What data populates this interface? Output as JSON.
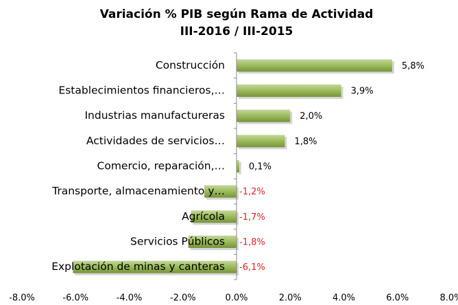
{
  "chart_data": {
    "type": "bar",
    "orientation": "horizontal",
    "title": "Variación % PIB según Rama de Actividad",
    "subtitle": "III-2016 / III-2015",
    "categories": [
      "Construcción",
      "Establecimientos financieros,…",
      "Industrias manufactureras",
      "Actividades de servicios…",
      "Comercio, reparación,…",
      "Transporte, almacenamiento y…",
      "Agrícola",
      "Servicios Públicos",
      "Explotación de minas y canteras"
    ],
    "values": [
      5.8,
      3.9,
      2.0,
      1.8,
      0.1,
      -1.2,
      -1.7,
      -1.8,
      -6.1
    ],
    "value_labels": [
      "5,8%",
      "3,9%",
      "2,0%",
      "1,8%",
      "0,1%",
      "-1,2%",
      "-1,7%",
      "-1,8%",
      "-6,1%"
    ],
    "color": "#9bbb59",
    "xlim": [
      -8,
      8
    ],
    "xticks": [
      {
        "value": -8,
        "label": "-8.0%"
      },
      {
        "value": -6,
        "label": "-6.0%"
      },
      {
        "value": -4,
        "label": "-4.0%"
      },
      {
        "value": -2,
        "label": "-2.0%"
      },
      {
        "value": 0,
        "label": "0.0%"
      },
      {
        "value": 2,
        "label": "2.0%"
      },
      {
        "value": 4,
        "label": "4.0%"
      },
      {
        "value": 6,
        "label": "6.0%"
      },
      {
        "value": 8,
        "label": "8.0%"
      }
    ],
    "grid": false
  }
}
